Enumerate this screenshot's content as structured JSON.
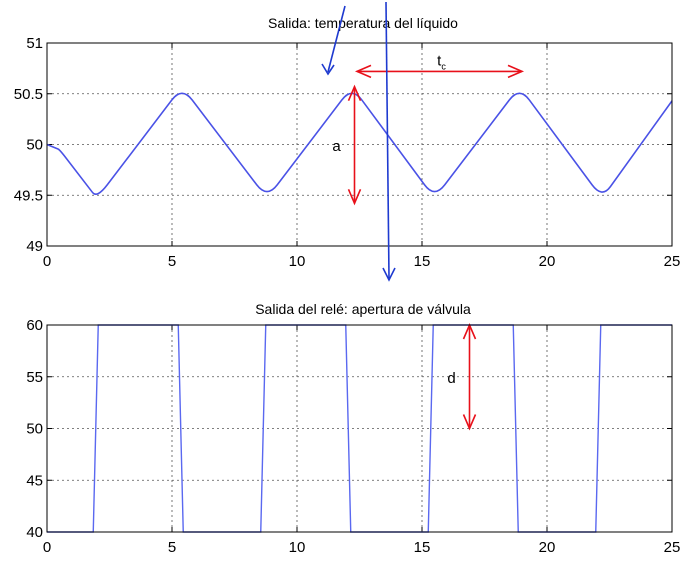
{
  "chart_data": [
    {
      "type": "line",
      "title": "Salida: temperatura del líquido",
      "xlim": [
        0,
        25
      ],
      "ylim": [
        49,
        51
      ],
      "x_ticks": [
        "0",
        "5",
        "10",
        "15",
        "20",
        "25"
      ],
      "y_ticks": [
        "49",
        "49.5",
        "50",
        "50.5",
        "51"
      ],
      "grid": true,
      "series": [
        {
          "color": "#4a52e6",
          "x": [
            0,
            0.5,
            2.0,
            5.4,
            8.8,
            12.2,
            15.5,
            18.9,
            22.2,
            25
          ],
          "y": [
            50.0,
            49.95,
            49.47,
            50.57,
            49.47,
            50.57,
            49.47,
            50.57,
            49.47,
            50.43
          ]
        }
      ],
      "annotations": {
        "amplitude_label": "a",
        "period_label": "t",
        "period_subscript": "c",
        "amplitude_x": 12.3,
        "amplitude_y": [
          50.57,
          49.42
        ],
        "period_x": [
          12.4,
          19.0
        ],
        "period_y": 50.72
      }
    },
    {
      "type": "line",
      "title": "Salida del relé: apertura de válvula",
      "xlim": [
        0,
        25
      ],
      "ylim": [
        40,
        60
      ],
      "x_ticks": [
        "0",
        "5",
        "10",
        "15",
        "20",
        "25"
      ],
      "y_ticks": [
        "40",
        "45",
        "50",
        "55",
        "60"
      ],
      "grid": true,
      "series": [
        {
          "color": "#5a68f0",
          "x": [
            0,
            1.85,
            2.05,
            5.25,
            5.45,
            8.55,
            8.75,
            11.95,
            12.15,
            15.25,
            15.45,
            18.65,
            18.85,
            21.95,
            22.15,
            25
          ],
          "y": [
            40,
            40,
            60,
            60,
            40,
            40,
            60,
            60,
            40,
            40,
            60,
            60,
            40,
            40,
            60,
            60
          ]
        }
      ],
      "annotations": {
        "amplitude_label": "d",
        "amplitude_x": 16.9,
        "amplitude_y": [
          60,
          50
        ]
      }
    }
  ]
}
